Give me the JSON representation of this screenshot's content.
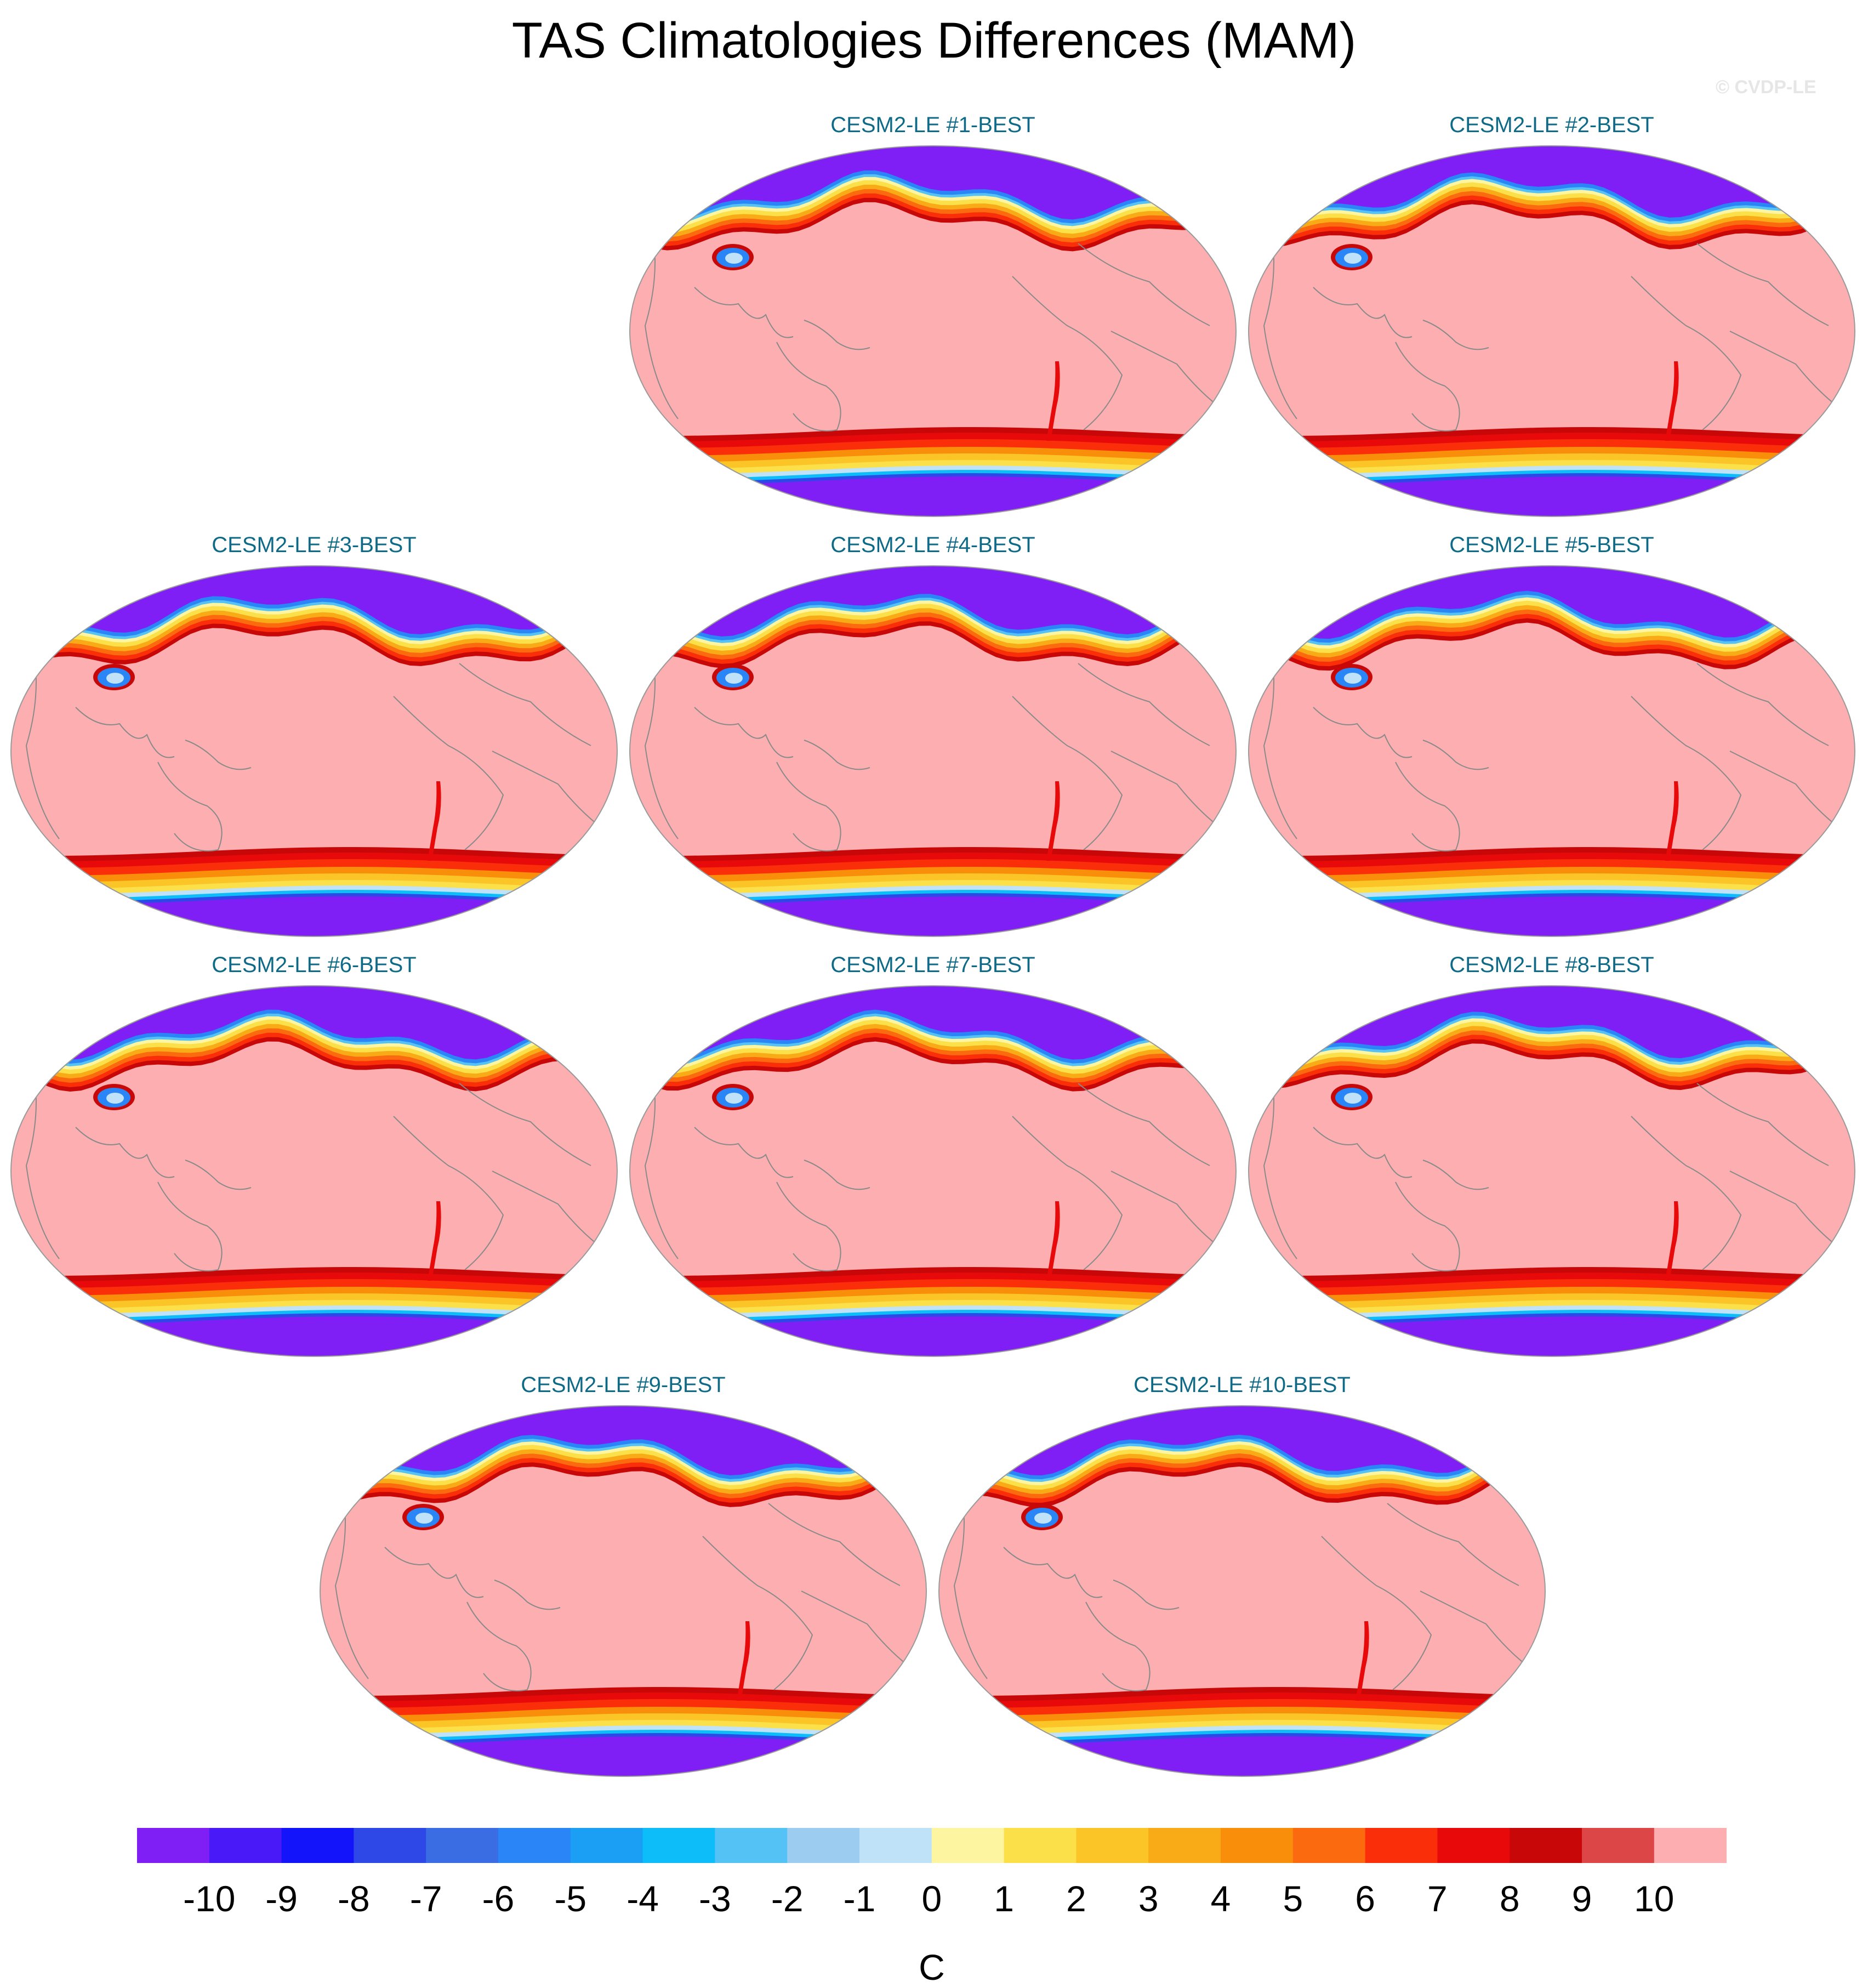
{
  "title": "TAS Climatologies Differences (MAM)",
  "watermark": "© CVDP-LE",
  "panels": [
    {
      "label": "CESM2-LE #1-BEST"
    },
    {
      "label": "CESM2-LE #2-BEST"
    },
    {
      "label": "CESM2-LE #3-BEST"
    },
    {
      "label": "CESM2-LE #4-BEST"
    },
    {
      "label": "CESM2-LE #5-BEST"
    },
    {
      "label": "CESM2-LE #6-BEST"
    },
    {
      "label": "CESM2-LE #7-BEST"
    },
    {
      "label": "CESM2-LE #8-BEST"
    },
    {
      "label": "CESM2-LE #9-BEST"
    },
    {
      "label": "CESM2-LE #10-BEST"
    }
  ],
  "colorbar": {
    "unit": "C",
    "tick_labels": [
      "-10",
      "-9",
      "-8",
      "-7",
      "-6",
      "-5",
      "-4",
      "-3",
      "-2",
      "-1",
      "0",
      "1",
      "2",
      "3",
      "4",
      "5",
      "6",
      "7",
      "8",
      "9",
      "10"
    ],
    "colors": [
      "#7f1ff5",
      "#4a19f7",
      "#1414fb",
      "#2e48e8",
      "#3a6de3",
      "#2a85f6",
      "#1a9ff5",
      "#0cbdf9",
      "#55c2f6",
      "#9ccdf0",
      "#bfe2f8",
      "#fdf5a0",
      "#fbe04a",
      "#fbc527",
      "#f9aa17",
      "#f98e0b",
      "#fb6a0e",
      "#fb2e0a",
      "#e80a0a",
      "#c80808",
      "#dc4646",
      "#fcaeb0"
    ]
  },
  "map_colors": {
    "land_ocean": "#fcaeb0",
    "polar": "#7f1ff5",
    "coast": "#8a8a8a"
  }
}
